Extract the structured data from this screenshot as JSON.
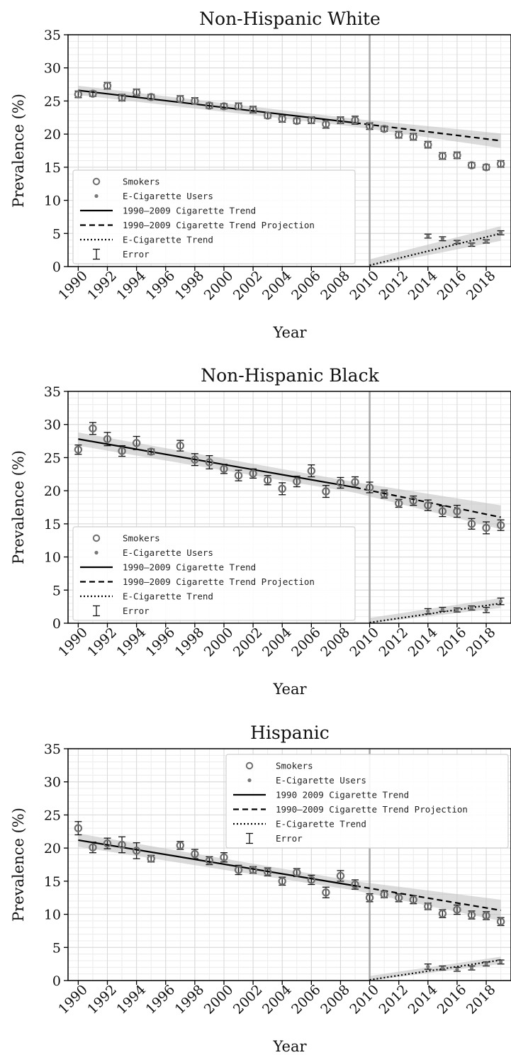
{
  "chart_data": [
    {
      "type": "scatter",
      "title": "Non-Hispanic White",
      "xlabel": "Year",
      "ylabel": "Prevalence (%)",
      "xlim": [
        1989.3,
        2019.7
      ],
      "ylim": [
        0,
        35
      ],
      "xticks": [
        1990,
        1992,
        1994,
        1996,
        1998,
        2000,
        2002,
        2004,
        2006,
        2008,
        2010,
        2012,
        2014,
        2016,
        2018
      ],
      "yticks": [
        0,
        5,
        10,
        15,
        20,
        25,
        30,
        35
      ],
      "grid": true,
      "legend_position": "lower-left",
      "reference_line_x": 2010,
      "legend": [
        "Smokers",
        "E-Cigarette Users",
        "1990–2009 Cigarette Trend",
        "1990–2009 Cigarette Trend Projection",
        "E-Cigarette Trend",
        "Error"
      ],
      "smokers": [
        {
          "x": 1990,
          "y": 26.0,
          "err": 0.5
        },
        {
          "x": 1991,
          "y": 26.1,
          "err": 0.4
        },
        {
          "x": 1992,
          "y": 27.3,
          "err": 0.5
        },
        {
          "x": 1993,
          "y": 25.5,
          "err": 0.5
        },
        {
          "x": 1994,
          "y": 26.3,
          "err": 0.5
        },
        {
          "x": 1995,
          "y": 25.6,
          "err": 0.4
        },
        {
          "x": 1997,
          "y": 25.3,
          "err": 0.5
        },
        {
          "x": 1998,
          "y": 25.0,
          "err": 0.5
        },
        {
          "x": 1999,
          "y": 24.3,
          "err": 0.4
        },
        {
          "x": 2000,
          "y": 24.2,
          "err": 0.4
        },
        {
          "x": 2001,
          "y": 24.2,
          "err": 0.5
        },
        {
          "x": 2002,
          "y": 23.7,
          "err": 0.5
        },
        {
          "x": 2003,
          "y": 22.8,
          "err": 0.4
        },
        {
          "x": 2004,
          "y": 22.3,
          "err": 0.5
        },
        {
          "x": 2005,
          "y": 22.0,
          "err": 0.4
        },
        {
          "x": 2006,
          "y": 22.1,
          "err": 0.5
        },
        {
          "x": 2007,
          "y": 21.5,
          "err": 0.6
        },
        {
          "x": 2008,
          "y": 22.1,
          "err": 0.5
        },
        {
          "x": 2009,
          "y": 22.1,
          "err": 0.6
        },
        {
          "x": 2010,
          "y": 21.2,
          "err": 0.5
        },
        {
          "x": 2011,
          "y": 20.8,
          "err": 0.4
        },
        {
          "x": 2012,
          "y": 19.9,
          "err": 0.5
        },
        {
          "x": 2013,
          "y": 19.6,
          "err": 0.5
        },
        {
          "x": 2014,
          "y": 18.4,
          "err": 0.5
        },
        {
          "x": 2015,
          "y": 16.7,
          "err": 0.5
        },
        {
          "x": 2016,
          "y": 16.8,
          "err": 0.5
        },
        {
          "x": 2017,
          "y": 15.3,
          "err": 0.4
        },
        {
          "x": 2018,
          "y": 15.0,
          "err": 0.4
        },
        {
          "x": 2019,
          "y": 15.5,
          "err": 0.5
        }
      ],
      "ecig": [
        {
          "x": 2014,
          "y": 4.6,
          "err": 0.3
        },
        {
          "x": 2015,
          "y": 4.2,
          "err": 0.3
        },
        {
          "x": 2016,
          "y": 3.7,
          "err": 0.25
        },
        {
          "x": 2017,
          "y": 3.3,
          "err": 0.25
        },
        {
          "x": 2018,
          "y": 3.8,
          "err": 0.25
        },
        {
          "x": 2019,
          "y": 5.1,
          "err": 0.3
        }
      ],
      "trend": {
        "x0": 1990,
        "y0": 26.6,
        "x1": 2009,
        "y1": 21.7
      },
      "projection": {
        "x0": 2009,
        "y0": 21.7,
        "x1": 2019,
        "y1": 19.0
      },
      "projection_band": [
        {
          "x": 2009,
          "lo": 21.1,
          "hi": 22.3
        },
        {
          "x": 2019,
          "lo": 17.9,
          "hi": 20.1
        }
      ],
      "trend_band": [
        {
          "x": 1990,
          "lo": 25.9,
          "hi": 27.3
        },
        {
          "x": 2009,
          "lo": 21.1,
          "hi": 22.3
        }
      ],
      "ecig_trend": {
        "x0": 2010,
        "y0": 0.2,
        "x1": 2019,
        "y1": 5.0
      },
      "ecig_band": [
        {
          "x": 2010,
          "lo": 0.0,
          "hi": 1.1
        },
        {
          "x": 2019,
          "lo": 3.9,
          "hi": 6.1
        }
      ]
    },
    {
      "type": "scatter",
      "title": "Non-Hispanic Black",
      "xlabel": "Year",
      "ylabel": "Prevalence (%)",
      "xlim": [
        1989.3,
        2019.7
      ],
      "ylim": [
        0,
        35
      ],
      "xticks": [
        1990,
        1992,
        1994,
        1996,
        1998,
        2000,
        2002,
        2004,
        2006,
        2008,
        2010,
        2012,
        2014,
        2016,
        2018
      ],
      "yticks": [
        0,
        5,
        10,
        15,
        20,
        25,
        30,
        35
      ],
      "grid": true,
      "legend_position": "lower-left",
      "reference_line_x": 2010,
      "legend": [
        "Smokers",
        "E-Cigarette Users",
        "1990–2009 Cigarette Trend",
        "1990–2009 Cigarette Trend Projection",
        "E-Cigarette Trend",
        "Error"
      ],
      "smokers": [
        {
          "x": 1990,
          "y": 26.2,
          "err": 0.7
        },
        {
          "x": 1991,
          "y": 29.4,
          "err": 0.9
        },
        {
          "x": 1992,
          "y": 27.8,
          "err": 1.0
        },
        {
          "x": 1993,
          "y": 26.0,
          "err": 0.8
        },
        {
          "x": 1994,
          "y": 27.2,
          "err": 1.0
        },
        {
          "x": 1995,
          "y": 25.9,
          "err": 0.4
        },
        {
          "x": 1997,
          "y": 26.8,
          "err": 0.8
        },
        {
          "x": 1998,
          "y": 24.7,
          "err": 0.9
        },
        {
          "x": 1999,
          "y": 24.3,
          "err": 1.0
        },
        {
          "x": 2000,
          "y": 23.3,
          "err": 0.7
        },
        {
          "x": 2001,
          "y": 22.3,
          "err": 0.8
        },
        {
          "x": 2002,
          "y": 22.6,
          "err": 0.7
        },
        {
          "x": 2003,
          "y": 21.6,
          "err": 0.7
        },
        {
          "x": 2004,
          "y": 20.3,
          "err": 0.9
        },
        {
          "x": 2005,
          "y": 21.4,
          "err": 0.8
        },
        {
          "x": 2006,
          "y": 23.0,
          "err": 0.9
        },
        {
          "x": 2007,
          "y": 19.9,
          "err": 0.9
        },
        {
          "x": 2008,
          "y": 21.2,
          "err": 0.8
        },
        {
          "x": 2009,
          "y": 21.3,
          "err": 0.8
        },
        {
          "x": 2010,
          "y": 20.5,
          "err": 0.8
        },
        {
          "x": 2011,
          "y": 19.5,
          "err": 0.6
        },
        {
          "x": 2012,
          "y": 18.1,
          "err": 0.6
        },
        {
          "x": 2013,
          "y": 18.5,
          "err": 0.7
        },
        {
          "x": 2014,
          "y": 17.8,
          "err": 0.8
        },
        {
          "x": 2015,
          "y": 16.9,
          "err": 0.8
        },
        {
          "x": 2016,
          "y": 16.9,
          "err": 0.9
        },
        {
          "x": 2017,
          "y": 15.0,
          "err": 0.8
        },
        {
          "x": 2018,
          "y": 14.4,
          "err": 0.9
        },
        {
          "x": 2019,
          "y": 14.8,
          "err": 0.8
        }
      ],
      "ecig": [
        {
          "x": 2014,
          "y": 1.8,
          "err": 0.4
        },
        {
          "x": 2015,
          "y": 2.1,
          "err": 0.3
        },
        {
          "x": 2016,
          "y": 2.0,
          "err": 0.3
        },
        {
          "x": 2017,
          "y": 2.3,
          "err": 0.3
        },
        {
          "x": 2018,
          "y": 2.0,
          "err": 0.4
        },
        {
          "x": 2019,
          "y": 3.3,
          "err": 0.5
        }
      ],
      "trend": {
        "x0": 1990,
        "y0": 27.8,
        "x1": 2009,
        "y1": 20.5
      },
      "projection": {
        "x0": 2009,
        "y0": 20.5,
        "x1": 2019,
        "y1": 16.0
      },
      "projection_band": [
        {
          "x": 2009,
          "lo": 19.7,
          "hi": 21.3
        },
        {
          "x": 2019,
          "lo": 14.2,
          "hi": 17.8
        }
      ],
      "trend_band": [
        {
          "x": 1990,
          "lo": 26.8,
          "hi": 28.8
        },
        {
          "x": 2009,
          "lo": 19.7,
          "hi": 21.3
        }
      ],
      "ecig_trend": {
        "x0": 2010,
        "y0": 0.1,
        "x1": 2019,
        "y1": 3.0
      },
      "ecig_band": [
        {
          "x": 2010,
          "lo": 0.0,
          "hi": 0.8
        },
        {
          "x": 2019,
          "lo": 2.3,
          "hi": 3.8
        }
      ]
    },
    {
      "type": "scatter",
      "title": "Hispanic",
      "xlabel": "Year",
      "ylabel": "Prevalence (%)",
      "xlim": [
        1989.3,
        2019.7
      ],
      "ylim": [
        0,
        35
      ],
      "xticks": [
        1990,
        1992,
        1994,
        1996,
        1998,
        2000,
        2002,
        2004,
        2006,
        2008,
        2010,
        2012,
        2014,
        2016,
        2018
      ],
      "yticks": [
        0,
        5,
        10,
        15,
        20,
        25,
        30,
        35
      ],
      "grid": true,
      "legend_position": "upper-right",
      "reference_line_x": 2010,
      "legend": [
        "Smokers",
        "E-Cigarette Users",
        "1990 2009 Cigarette Trend",
        "1990–2009 Cigarette Trend Projection",
        "E-Cigarette Trend",
        "Error"
      ],
      "smokers": [
        {
          "x": 1990,
          "y": 23.0,
          "err": 1.0
        },
        {
          "x": 1991,
          "y": 20.1,
          "err": 0.8
        },
        {
          "x": 1992,
          "y": 20.7,
          "err": 0.8
        },
        {
          "x": 1993,
          "y": 20.5,
          "err": 1.2
        },
        {
          "x": 1994,
          "y": 19.6,
          "err": 1.2
        },
        {
          "x": 1995,
          "y": 18.4,
          "err": 0.5
        },
        {
          "x": 1997,
          "y": 20.4,
          "err": 0.6
        },
        {
          "x": 1998,
          "y": 19.1,
          "err": 0.7
        },
        {
          "x": 1999,
          "y": 18.1,
          "err": 0.6
        },
        {
          "x": 2000,
          "y": 18.6,
          "err": 0.7
        },
        {
          "x": 2001,
          "y": 16.7,
          "err": 0.7
        },
        {
          "x": 2002,
          "y": 16.7,
          "err": 0.5
        },
        {
          "x": 2003,
          "y": 16.4,
          "err": 0.6
        },
        {
          "x": 2004,
          "y": 15.0,
          "err": 0.6
        },
        {
          "x": 2005,
          "y": 16.3,
          "err": 0.6
        },
        {
          "x": 2006,
          "y": 15.2,
          "err": 0.7
        },
        {
          "x": 2007,
          "y": 13.3,
          "err": 0.8
        },
        {
          "x": 2008,
          "y": 15.8,
          "err": 0.8
        },
        {
          "x": 2009,
          "y": 14.5,
          "err": 0.7
        },
        {
          "x": 2010,
          "y": 12.5,
          "err": 0.6
        },
        {
          "x": 2011,
          "y": 13.0,
          "err": 0.5
        },
        {
          "x": 2012,
          "y": 12.5,
          "err": 0.6
        },
        {
          "x": 2013,
          "y": 12.2,
          "err": 0.6
        },
        {
          "x": 2014,
          "y": 11.2,
          "err": 0.5
        },
        {
          "x": 2015,
          "y": 10.1,
          "err": 0.6
        },
        {
          "x": 2016,
          "y": 10.7,
          "err": 0.7
        },
        {
          "x": 2017,
          "y": 9.9,
          "err": 0.6
        },
        {
          "x": 2018,
          "y": 9.8,
          "err": 0.6
        },
        {
          "x": 2019,
          "y": 8.9,
          "err": 0.6
        }
      ],
      "ecig": [
        {
          "x": 2014,
          "y": 2.1,
          "err": 0.4
        },
        {
          "x": 2015,
          "y": 1.9,
          "err": 0.3
        },
        {
          "x": 2016,
          "y": 1.7,
          "err": 0.3
        },
        {
          "x": 2017,
          "y": 1.9,
          "err": 0.3
        },
        {
          "x": 2018,
          "y": 2.5,
          "err": 0.3
        },
        {
          "x": 2019,
          "y": 2.8,
          "err": 0.3
        }
      ],
      "trend": {
        "x0": 1990,
        "y0": 21.2,
        "x1": 2009,
        "y1": 14.3
      },
      "projection": {
        "x0": 2009,
        "y0": 14.3,
        "x1": 2019,
        "y1": 10.6
      },
      "projection_band": [
        {
          "x": 2009,
          "lo": 13.6,
          "hi": 15.0
        },
        {
          "x": 2019,
          "lo": 9.0,
          "hi": 12.2
        }
      ],
      "trend_band": [
        {
          "x": 1990,
          "lo": 20.2,
          "hi": 22.2
        },
        {
          "x": 2009,
          "lo": 13.6,
          "hi": 15.0
        }
      ],
      "ecig_trend": {
        "x0": 2010,
        "y0": 0.1,
        "x1": 2019,
        "y1": 3.1
      },
      "ecig_band": [
        {
          "x": 2010,
          "lo": 0.0,
          "hi": 0.7
        },
        {
          "x": 2019,
          "lo": 2.5,
          "hi": 3.6
        }
      ]
    }
  ]
}
